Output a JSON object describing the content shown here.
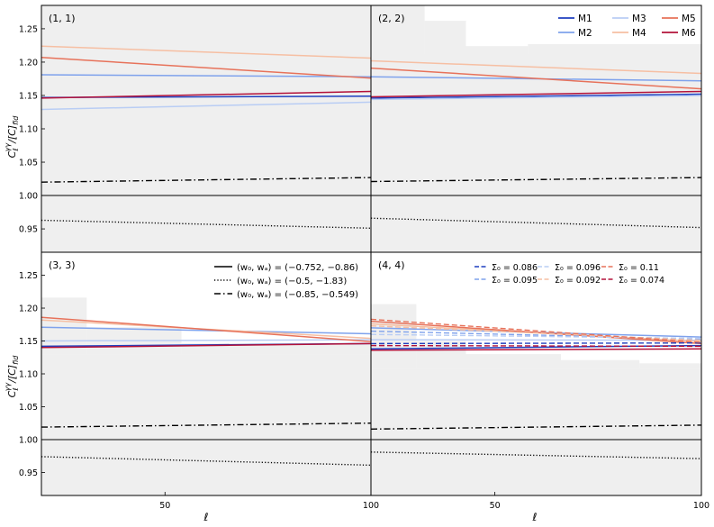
{
  "chart_data": {
    "type": "line",
    "layout": "2x2 grid of panels sharing axes",
    "xlabel": "ℓ",
    "ylabel": "C_ℓ^{γγ}/[C_ℓ^{γγ}]_fid",
    "ylabel_main": "C",
    "ylabel_sub": "ℓ",
    "ylabel_sup": "γγ",
    "ylabel_tail": "/[C",
    "ylabel_end": "]",
    "ylabel_fid": "fid",
    "xlim": [
      20,
      100
    ],
    "ylim": [
      0.915,
      1.285
    ],
    "x_tick_labels": [
      "50",
      "100"
    ],
    "x_ticks": [
      50,
      100
    ],
    "y_ticks": [
      0.95,
      1.0,
      1.05,
      1.1,
      1.15,
      1.2,
      1.25
    ],
    "y_tick_labels": [
      "0.95",
      "1.00",
      "1.05",
      "1.10",
      "1.15",
      "1.20",
      "1.25"
    ],
    "reference_line": 1.0,
    "colors": {
      "M1": "#1f3fbf",
      "M2": "#7fa2ec",
      "M3": "#b9cdf4",
      "M4": "#f6bfa3",
      "M5": "#e7725a",
      "M6": "#b3123a",
      "band": "#efefef"
    },
    "legend_models": {
      "placement": "top-right of panel (2,2)",
      "entries": [
        "M1",
        "M2",
        "M3",
        "M4",
        "M5",
        "M6"
      ]
    },
    "legend_w0wa": {
      "placement": "top-right of panel (3,3)",
      "entries": [
        {
          "label": "(w₀, wₐ) = (−0.752, −0.86)",
          "style": "solid"
        },
        {
          "label": "(w₀, wₐ) = (−0.5, −1.83)",
          "style": "dotted"
        },
        {
          "label": "(w₀, wₐ) = (−0.85, −0.549)",
          "style": "dashdot"
        }
      ]
    },
    "legend_sigma": {
      "placement": "top-right of panel (4,4)",
      "entries": [
        {
          "label": "Σ₀ = 0.086",
          "model": "M1"
        },
        {
          "label": "Σ₀ = 0.095",
          "model": "M2"
        },
        {
          "label": "Σ₀ = 0.096",
          "model": "M3"
        },
        {
          "label": "Σ₀ = 0.092",
          "model": "M4"
        },
        {
          "label": "Σ₀ = 0.11",
          "model": "M5"
        },
        {
          "label": "Σ₀ = 0.074",
          "model": "M6"
        }
      ]
    },
    "panels": [
      {
        "label": "(1, 1)",
        "band": [
          {
            "x0": 20,
            "x1": 100,
            "y0": 0.915,
            "y1": 1.285
          }
        ],
        "series": [
          {
            "name": "M1",
            "model": "M1",
            "style": "solid",
            "x": [
              20,
              100
            ],
            "y": [
              1.147,
              1.149
            ]
          },
          {
            "name": "M2",
            "model": "M2",
            "style": "solid",
            "x": [
              20,
              100
            ],
            "y": [
              1.181,
              1.178
            ]
          },
          {
            "name": "M3",
            "model": "M3",
            "style": "solid",
            "x": [
              20,
              100
            ],
            "y": [
              1.129,
              1.14
            ]
          },
          {
            "name": "M4",
            "model": "M4",
            "style": "solid",
            "x": [
              20,
              100
            ],
            "y": [
              1.224,
              1.206
            ]
          },
          {
            "name": "M5",
            "model": "M5",
            "style": "solid",
            "x": [
              20,
              100
            ],
            "y": [
              1.207,
              1.176
            ]
          },
          {
            "name": "M6",
            "model": "M6",
            "style": "solid",
            "x": [
              20,
              100
            ],
            "y": [
              1.146,
              1.156
            ]
          },
          {
            "name": "w0wa dotted",
            "style": "dotted",
            "x": [
              20,
              100
            ],
            "y": [
              0.963,
              0.951
            ]
          },
          {
            "name": "w0wa dashdot",
            "style": "dashdot",
            "x": [
              20,
              100
            ],
            "y": [
              1.02,
              1.027
            ]
          }
        ]
      },
      {
        "label": "(2, 2)",
        "band": [
          {
            "x0": 20,
            "x1": 100,
            "y0": 0.915,
            "y1": 1.212
          },
          {
            "x0": 20,
            "x1": 33,
            "y0": 1.212,
            "y1": 1.285
          },
          {
            "x0": 33,
            "x1": 43,
            "y0": 1.212,
            "y1": 1.262
          },
          {
            "x0": 43,
            "x1": 58,
            "y0": 1.212,
            "y1": 1.224
          },
          {
            "x0": 58,
            "x1": 100,
            "y0": 1.212,
            "y1": 1.227
          }
        ],
        "series": [
          {
            "name": "M1",
            "model": "M1",
            "style": "solid",
            "x": [
              20,
              100
            ],
            "y": [
              1.146,
              1.152
            ]
          },
          {
            "name": "M2",
            "model": "M2",
            "style": "solid",
            "x": [
              20,
              100
            ],
            "y": [
              1.178,
              1.172
            ]
          },
          {
            "name": "M3",
            "model": "M3",
            "style": "solid",
            "x": [
              20,
              100
            ],
            "y": [
              1.144,
              1.15
            ]
          },
          {
            "name": "M4",
            "model": "M4",
            "style": "solid",
            "x": [
              20,
              100
            ],
            "y": [
              1.202,
              1.183
            ]
          },
          {
            "name": "M5",
            "model": "M5",
            "style": "solid",
            "x": [
              20,
              100
            ],
            "y": [
              1.191,
              1.16
            ]
          },
          {
            "name": "M6",
            "model": "M6",
            "style": "solid",
            "x": [
              20,
              100
            ],
            "y": [
              1.148,
              1.156
            ]
          },
          {
            "name": "w0wa dotted",
            "style": "dotted",
            "x": [
              20,
              100
            ],
            "y": [
              0.966,
              0.952
            ]
          },
          {
            "name": "w0wa dashdot",
            "style": "dashdot",
            "x": [
              20,
              100
            ],
            "y": [
              1.021,
              1.027
            ]
          }
        ]
      },
      {
        "label": "(3, 3)",
        "band": [
          {
            "x0": 20,
            "x1": 100,
            "y0": 0.915,
            "y1": 1.13
          },
          {
            "x0": 20,
            "x1": 31,
            "y0": 1.13,
            "y1": 1.216
          },
          {
            "x0": 31,
            "x1": 54,
            "y0": 1.13,
            "y1": 1.171
          },
          {
            "x0": 54,
            "x1": 100,
            "y0": 1.13,
            "y1": 1.147
          }
        ],
        "series": [
          {
            "name": "M1",
            "model": "M1",
            "style": "solid",
            "x": [
              20,
              100
            ],
            "y": [
              1.142,
              1.146
            ]
          },
          {
            "name": "M2",
            "model": "M2",
            "style": "solid",
            "x": [
              20,
              100
            ],
            "y": [
              1.171,
              1.161
            ]
          },
          {
            "name": "M3",
            "model": "M3",
            "style": "solid",
            "x": [
              20,
              100
            ],
            "y": [
              1.15,
              1.152
            ]
          },
          {
            "name": "M4",
            "model": "M4",
            "style": "solid",
            "x": [
              20,
              100
            ],
            "y": [
              1.182,
              1.154
            ]
          },
          {
            "name": "M5",
            "model": "M5",
            "style": "solid",
            "x": [
              20,
              100
            ],
            "y": [
              1.186,
              1.149
            ]
          },
          {
            "name": "M6",
            "model": "M6",
            "style": "solid",
            "x": [
              20,
              100
            ],
            "y": [
              1.14,
              1.146
            ]
          },
          {
            "name": "w0wa dotted",
            "style": "dotted",
            "x": [
              20,
              100
            ],
            "y": [
              0.974,
              0.961
            ]
          },
          {
            "name": "w0wa dashdot",
            "style": "dashdot",
            "x": [
              20,
              100
            ],
            "y": [
              1.019,
              1.025
            ]
          }
        ]
      },
      {
        "label": "(4, 4)",
        "band": [
          {
            "x0": 20,
            "x1": 100,
            "y0": 0.915,
            "y1": 1.108
          },
          {
            "x0": 20,
            "x1": 31,
            "y0": 1.108,
            "y1": 1.206
          },
          {
            "x0": 31,
            "x1": 43,
            "y0": 1.108,
            "y1": 1.15
          },
          {
            "x0": 43,
            "x1": 66,
            "y0": 1.108,
            "y1": 1.13
          },
          {
            "x0": 66,
            "x1": 85,
            "y0": 1.108,
            "y1": 1.121
          },
          {
            "x0": 85,
            "x1": 100,
            "y0": 1.108,
            "y1": 1.116
          }
        ],
        "series": [
          {
            "name": "M1",
            "model": "M1",
            "style": "solid",
            "x": [
              20,
              100
            ],
            "y": [
              1.138,
              1.143
            ]
          },
          {
            "name": "M2",
            "model": "M2",
            "style": "solid",
            "x": [
              20,
              100
            ],
            "y": [
              1.17,
              1.156
            ]
          },
          {
            "name": "M3",
            "model": "M3",
            "style": "solid",
            "x": [
              20,
              100
            ],
            "y": [
              1.152,
              1.151
            ]
          },
          {
            "name": "M4",
            "model": "M4",
            "style": "solid",
            "x": [
              20,
              100
            ],
            "y": [
              1.176,
              1.149
            ]
          },
          {
            "name": "M5",
            "model": "M5",
            "style": "solid",
            "x": [
              20,
              100
            ],
            "y": [
              1.18,
              1.146
            ]
          },
          {
            "name": "M6",
            "model": "M6",
            "style": "solid",
            "x": [
              20,
              100
            ],
            "y": [
              1.136,
              1.138
            ]
          },
          {
            "name": "Σ₀ = 0.086",
            "model": "M1",
            "style": "dashed",
            "x": [
              20,
              100
            ],
            "y": [
              1.146,
              1.147
            ]
          },
          {
            "name": "Σ₀ = 0.095",
            "model": "M2",
            "style": "dashed",
            "x": [
              20,
              100
            ],
            "y": [
              1.165,
              1.153
            ]
          },
          {
            "name": "Σ₀ = 0.096",
            "model": "M3",
            "style": "dashed",
            "x": [
              20,
              100
            ],
            "y": [
              1.16,
              1.154
            ]
          },
          {
            "name": "Σ₀ = 0.092",
            "model": "M4",
            "style": "dashed",
            "x": [
              20,
              100
            ],
            "y": [
              1.173,
              1.151
            ]
          },
          {
            "name": "Σ₀ = 0.11",
            "model": "M5",
            "style": "dashed",
            "x": [
              20,
              100
            ],
            "y": [
              1.183,
              1.148
            ]
          },
          {
            "name": "Σ₀ = 0.074",
            "model": "M6",
            "style": "dashed",
            "x": [
              20,
              100
            ],
            "y": [
              1.143,
              1.142
            ]
          },
          {
            "name": "w0wa dotted",
            "style": "dotted",
            "x": [
              20,
              100
            ],
            "y": [
              0.981,
              0.971
            ]
          },
          {
            "name": "w0wa dashdot",
            "style": "dashdot",
            "x": [
              20,
              100
            ],
            "y": [
              1.016,
              1.022
            ]
          }
        ]
      }
    ]
  }
}
